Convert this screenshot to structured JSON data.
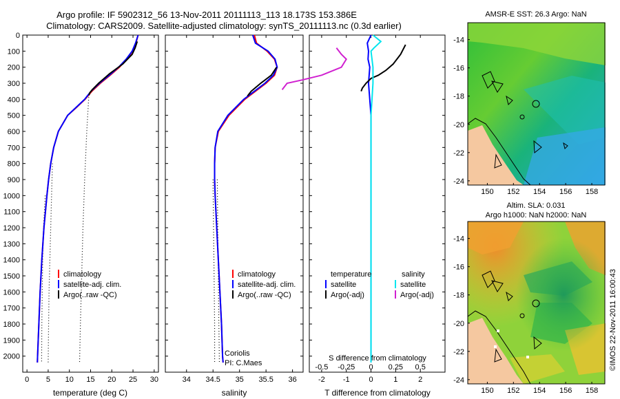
{
  "header": {
    "line1": "Argo profile: IF 5902312_56 13-Nov-2011 20111113_113 18.173S 153.386E",
    "line2": "Climatology: CARS2009. Satellite-adjusted climatology: synTS_20111113.nc (0.3d earlier)"
  },
  "colors": {
    "climatology": "#ff0000",
    "satellite": "#0000ff",
    "argo": "#000000",
    "sal_satellite": "#00e5ee",
    "sal_argo": "#d020d0",
    "land": "#f5c8a0"
  },
  "chart_data": [
    {
      "id": "temperature",
      "type": "line",
      "xlabel": "temperature (deg C)",
      "xlim": [
        -1,
        31
      ],
      "xticks": [
        0,
        5,
        10,
        15,
        20,
        25,
        30
      ],
      "ylim": [
        2100,
        0
      ],
      "yticks": [
        0,
        100,
        200,
        300,
        400,
        500,
        600,
        700,
        800,
        900,
        1000,
        1100,
        1200,
        1300,
        1400,
        1500,
        1600,
        1700,
        1800,
        1900,
        2000
      ],
      "legend": [
        "climatology",
        "satellite-adj. clim.",
        "Argo(..raw -QC)"
      ],
      "series": [
        {
          "name": "climatology",
          "color": "#ff0000",
          "depth": [
            0,
            50,
            100,
            150,
            200,
            250,
            300,
            350,
            400,
            450,
            500,
            600,
            700,
            800,
            900,
            1000,
            1200,
            1400,
            1600,
            1800,
            2000,
            2040
          ],
          "values": [
            26.2,
            25.7,
            24.9,
            23.5,
            21.8,
            19.6,
            17.3,
            15.3,
            13.7,
            11.7,
            9.6,
            7.4,
            6.3,
            5.6,
            5.1,
            4.7,
            4.0,
            3.5,
            3.1,
            2.8,
            2.5,
            2.45
          ]
        },
        {
          "name": "satellite-adj. clim.",
          "color": "#0000ff",
          "depth": [
            0,
            50,
            100,
            150,
            200,
            250,
            300,
            350,
            400,
            450,
            500,
            600,
            700,
            800,
            900,
            1000,
            1200,
            1400,
            1600,
            1800,
            2000,
            2040
          ],
          "values": [
            26.2,
            25.6,
            24.8,
            23.4,
            21.6,
            19.4,
            17.1,
            15.1,
            13.6,
            11.6,
            9.6,
            7.4,
            6.3,
            5.6,
            5.1,
            4.7,
            4.0,
            3.5,
            3.1,
            2.8,
            2.5,
            2.45
          ]
        },
        {
          "name": "Argo",
          "color": "#000000",
          "depth": [
            40,
            80,
            120,
            180,
            240,
            300,
            340,
            360,
            375
          ],
          "values": [
            26.0,
            25.5,
            24.8,
            22.6,
            19.5,
            16.9,
            15.4,
            14.8,
            14.6
          ]
        }
      ],
      "dotted": [
        {
          "depth": [
            370,
            600,
            900,
            1200,
            1500,
            1800,
            2040
          ],
          "values": [
            14.6,
            14.1,
            13.6,
            13.2,
            12.9,
            12.6,
            12.4
          ]
        },
        {
          "depth": [
            800,
            1000,
            1200,
            1400,
            1600,
            1800,
            2040
          ],
          "values": [
            6.0,
            5.8,
            5.6,
            5.4,
            5.2,
            5.1,
            5.0
          ]
        },
        {
          "depth": [
            1000,
            1200,
            1400,
            1600,
            1800,
            2040
          ],
          "values": [
            4.3,
            3.9,
            3.7,
            3.6,
            3.5,
            3.45
          ]
        }
      ]
    },
    {
      "id": "salinity",
      "type": "line",
      "xlabel": "salinity",
      "xlim": [
        33.6,
        36.2
      ],
      "xticks": [
        34,
        34.5,
        35,
        35.5,
        36
      ],
      "ylim": [
        2100,
        0
      ],
      "legend": [
        "climatology",
        "satellite-adj. clim.",
        "Argo(..raw -QC)"
      ],
      "annotation": [
        "Coriolis",
        "PI: C.Maes"
      ],
      "series": [
        {
          "name": "climatology",
          "color": "#ff0000",
          "depth": [
            0,
            50,
            100,
            150,
            200,
            250,
            300,
            400,
            500,
            600,
            700,
            800,
            900,
            1000,
            1200,
            1400,
            1600,
            1800,
            2000,
            2040
          ],
          "values": [
            35.28,
            35.32,
            35.52,
            35.66,
            35.71,
            35.66,
            35.5,
            35.1,
            34.8,
            34.6,
            34.54,
            34.53,
            34.53,
            34.54,
            34.57,
            34.6,
            34.63,
            34.66,
            34.68,
            34.69
          ]
        },
        {
          "name": "satellite-adj. clim.",
          "color": "#0000ff",
          "depth": [
            0,
            50,
            100,
            150,
            200,
            250,
            300,
            400,
            500,
            600,
            700,
            800,
            900,
            1000,
            1200,
            1400,
            1600,
            1800,
            2000,
            2040
          ],
          "values": [
            35.25,
            35.3,
            35.54,
            35.67,
            35.71,
            35.64,
            35.48,
            35.08,
            34.78,
            34.59,
            34.54,
            34.53,
            34.53,
            34.54,
            34.57,
            34.6,
            34.63,
            34.66,
            34.68,
            34.69
          ]
        },
        {
          "name": "Argo",
          "color": "#000000",
          "depth": [
            200,
            250,
            300,
            350,
            380
          ],
          "values": [
            35.7,
            35.6,
            35.4,
            35.22,
            35.15
          ]
        }
      ],
      "dotted": [
        {
          "depth": [
            900,
            1200,
            1500,
            1800,
            2040
          ],
          "values": [
            34.5,
            34.51,
            34.52,
            34.53,
            34.53
          ]
        },
        {
          "depth": [
            900,
            1200,
            1500,
            1800,
            2040
          ],
          "values": [
            34.58,
            34.59,
            34.6,
            34.61,
            34.62
          ]
        }
      ]
    },
    {
      "id": "difference",
      "type": "line",
      "xlabel": "T difference from climatology",
      "xlabel_top": "S difference from climatology",
      "xlim": [
        -2.5,
        3.0
      ],
      "xticks": [
        -2,
        -1,
        0,
        1,
        2
      ],
      "xticks_top": [
        -0.5,
        -0.25,
        0,
        0.25,
        0.5
      ],
      "ylim": [
        2100,
        0
      ],
      "legend_headers": [
        "temperature",
        "salinity"
      ],
      "legend": [
        "satellite",
        "Argo(-adj)",
        "satellite",
        "Argo(-adj)"
      ],
      "series": [
        {
          "name": "T satellite",
          "color": "#0000ff",
          "depth": [
            0,
            50,
            100,
            150,
            200,
            300,
            500,
            800,
            1200,
            1600,
            2040
          ],
          "values": [
            0.0,
            -0.15,
            -0.1,
            -0.12,
            -0.05,
            -0.1,
            0.0,
            0.0,
            0.0,
            0.0,
            0.0
          ]
        },
        {
          "name": "T Argo(-adj)",
          "color": "#000000",
          "depth": [
            60,
            120,
            180,
            220,
            250,
            270,
            300,
            330,
            350
          ],
          "values": [
            1.4,
            1.2,
            0.9,
            0.6,
            0.3,
            0.0,
            -0.2,
            -0.35,
            -0.4
          ]
        },
        {
          "name": "S satellite",
          "color": "#00e5ee",
          "depth": [
            0,
            40,
            80,
            100,
            200,
            300,
            500,
            800,
            1200,
            1600,
            2040
          ],
          "values": [
            0.02,
            0.1,
            0.03,
            0.0,
            0.02,
            0.02,
            0.0,
            0.0,
            0.0,
            0.0,
            0.0
          ]
        },
        {
          "name": "S Argo(-adj)",
          "color": "#d020d0",
          "depth": [
            80,
            120,
            150,
            200,
            250,
            280,
            300,
            340
          ],
          "values": [
            -0.35,
            -0.3,
            -0.25,
            -0.3,
            -0.5,
            -0.7,
            -0.85,
            -0.9
          ]
        }
      ]
    },
    {
      "id": "sst_map",
      "type": "heatmap",
      "title": "AMSR-E SST: 26.3 Argo: NaN",
      "xticks": [
        150,
        152,
        154,
        156,
        158
      ],
      "yticks": [
        -14,
        -16,
        -18,
        -20,
        -22,
        -24
      ],
      "xlim": [
        148.5,
        159
      ],
      "ylim": [
        -24.3,
        -12.8
      ]
    },
    {
      "id": "sla_map",
      "type": "heatmap",
      "title": "Altim. SLA: 0.031",
      "subtitle": "Argo h1000: NaN h2000: NaN",
      "xticks": [
        150,
        152,
        154,
        156,
        158
      ],
      "yticks": [
        -14,
        -16,
        -18,
        -20,
        -22,
        -24
      ],
      "xlim": [
        148.5,
        159
      ],
      "ylim": [
        -24.3,
        -12.8
      ]
    }
  ],
  "credit": "©IMOS 22-Nov-2011 16:00:43"
}
